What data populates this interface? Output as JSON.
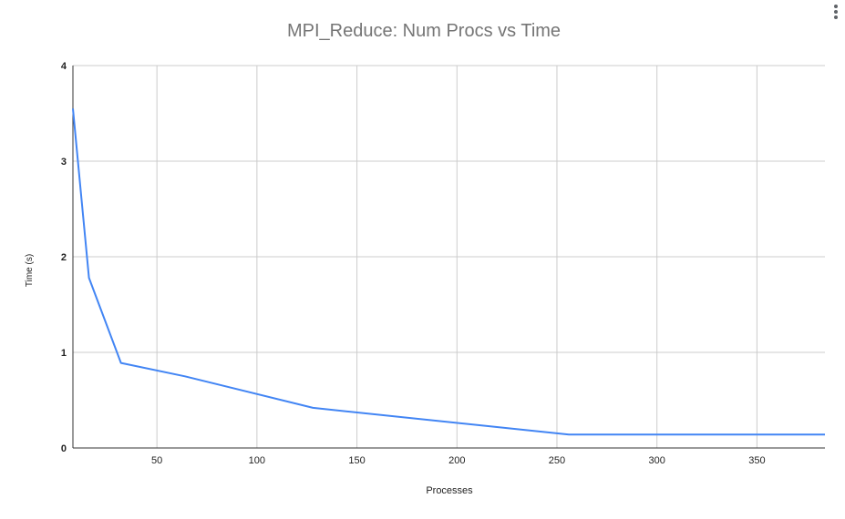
{
  "menu": {
    "icon": "more-vert-icon"
  },
  "chart_data": {
    "type": "line",
    "title": "MPI_Reduce: Num Procs vs Time",
    "xlabel": "Processes",
    "ylabel": "Time (s)",
    "xlim": [
      8,
      384
    ],
    "ylim": [
      0,
      4
    ],
    "x_ticks": [
      50,
      100,
      150,
      200,
      250,
      300,
      350
    ],
    "y_ticks": [
      0,
      1,
      2,
      3,
      4
    ],
    "grid": true,
    "legend": "none",
    "series": [
      {
        "color": "#4285f4",
        "x": [
          8,
          16,
          32,
          64,
          128,
          256,
          384
        ],
        "y": [
          3.55,
          1.78,
          0.89,
          0.75,
          0.42,
          0.14,
          0.14
        ]
      }
    ]
  }
}
